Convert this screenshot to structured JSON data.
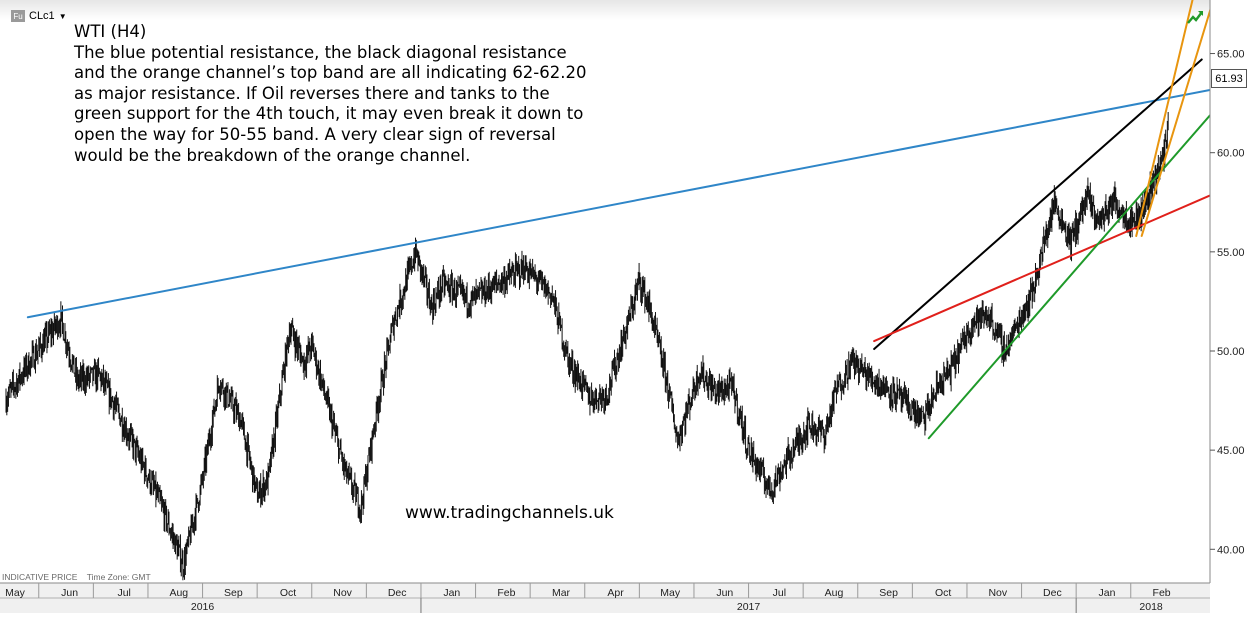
{
  "symbol": {
    "badge": "Fu",
    "name": "CLc1",
    "caret": "▼"
  },
  "annotation": {
    "title": "WTI (H4)",
    "lines": [
      "The blue potential resistance, the black diagonal resistance",
      "and the orange channel’s top band are all indicating 62-62.20",
      "as major resistance. If Oil reverses there and tanks to the",
      "green support for the 4th touch, it may even break it down to",
      "open the way for 50-55 band. A very clear sign of reversal",
      "would be the breakdown of the orange channel."
    ]
  },
  "watermark": "www.tradingchannels.uk",
  "footer": {
    "left": "INDICATIVE PRICE",
    "right": "Time Zone: GMT"
  },
  "last_price": "61.93",
  "icons": {
    "corner": "trend-up-icon"
  },
  "colors": {
    "blue_resistance": "#2f86c8",
    "black_resistance": "#000000",
    "red_support": "#e0201b",
    "green_support": "#1f9a2a",
    "orange_channel": "#e8950f"
  },
  "chart_data": {
    "type": "candlestick",
    "title": "",
    "timeframe": "H4",
    "y_ticks": [
      "40.00",
      "45.00",
      "50.00",
      "55.00",
      "60.00",
      "65.00"
    ],
    "ylim": [
      38.3,
      67.7
    ],
    "x_month_labels": [
      "May",
      "Jun",
      "Jul",
      "Aug",
      "Sep",
      "Oct",
      "Nov",
      "Dec",
      "Jan",
      "Feb",
      "Mar",
      "Apr",
      "May",
      "Jun",
      "Jul",
      "Aug",
      "Sep",
      "Oct",
      "Nov",
      "Dec",
      "Jan",
      "Feb"
    ],
    "x_year_labels": [
      "2016",
      "2017",
      "2018"
    ],
    "price_path": [
      [
        0,
        47.6
      ],
      [
        0.5,
        49.7
      ],
      [
        1,
        51.6
      ],
      [
        1.3,
        48.5
      ],
      [
        1.7,
        48.8
      ],
      [
        2,
        47.2
      ],
      [
        2.8,
        42.5
      ],
      [
        3.25,
        39.2
      ],
      [
        3.6,
        43.5
      ],
      [
        3.9,
        48.5
      ],
      [
        4.3,
        46.5
      ],
      [
        4.6,
        42.7
      ],
      [
        4.8,
        43.5
      ],
      [
        5.2,
        51.2
      ],
      [
        5.45,
        49.4
      ],
      [
        5.6,
        50.3
      ],
      [
        6.2,
        44.0
      ],
      [
        6.5,
        42.1
      ],
      [
        6.8,
        47.2
      ],
      [
        7.1,
        51.5
      ],
      [
        7.5,
        55.0
      ],
      [
        7.8,
        52.2
      ],
      [
        8,
        53.4
      ],
      [
        8.5,
        52.5
      ],
      [
        9,
        53.4
      ],
      [
        9.5,
        54.2
      ],
      [
        10,
        52.8
      ],
      [
        10.3,
        49.5
      ],
      [
        10.7,
        47.6
      ],
      [
        11,
        47.8
      ],
      [
        11.4,
        51.5
      ],
      [
        11.6,
        53.6
      ],
      [
        11.8,
        52.0
      ],
      [
        12.1,
        48.5
      ],
      [
        12.3,
        45.5
      ],
      [
        12.7,
        49.0
      ],
      [
        13,
        47.9
      ],
      [
        13.3,
        48.2
      ],
      [
        13.6,
        45.0
      ],
      [
        14,
        43.0
      ],
      [
        14.3,
        44.5
      ],
      [
        14.7,
        46.3
      ],
      [
        15,
        45.8
      ],
      [
        15.2,
        48.0
      ],
      [
        15.5,
        49.5
      ],
      [
        15.8,
        48.7
      ],
      [
        16.3,
        47.8
      ],
      [
        16.8,
        46.5
      ],
      [
        17.1,
        48.4
      ],
      [
        17.3,
        49.0
      ],
      [
        17.7,
        51.5
      ],
      [
        18,
        51.8
      ],
      [
        18.3,
        50.0
      ],
      [
        18.6,
        51.8
      ],
      [
        18.8,
        53.0
      ],
      [
        19,
        55.3
      ],
      [
        19.2,
        57.5
      ],
      [
        19.5,
        55.5
      ],
      [
        19.8,
        57.8
      ],
      [
        20,
        56.5
      ],
      [
        20.3,
        57.6
      ],
      [
        20.6,
        56.5
      ],
      [
        20.8,
        57.0
      ],
      [
        21,
        58.5
      ],
      [
        21.2,
        59.8
      ],
      [
        21.3,
        61.9
      ]
    ],
    "trendlines": [
      {
        "name": "blue potential resistance",
        "color": "blue",
        "from": [
          0.4,
          51.7
        ],
        "to": [
          22.5,
          63.4
        ]
      },
      {
        "name": "black diagonal resistance",
        "color": "black",
        "from": [
          15.9,
          50.1
        ],
        "to": [
          21.9,
          64.7
        ]
      },
      {
        "name": "red support",
        "color": "red",
        "from": [
          15.9,
          50.5
        ],
        "to": [
          22.1,
          57.9
        ]
      },
      {
        "name": "green support",
        "color": "green",
        "from": [
          16.9,
          45.6
        ],
        "to": [
          23.1,
          65.2
        ]
      },
      {
        "name": "orange channel top",
        "color": "orange",
        "from": [
          20.7,
          55.8
        ],
        "to": [
          21.8,
          68.5
        ]
      },
      {
        "name": "orange channel bottom",
        "color": "orange",
        "from": [
          20.8,
          55.8
        ],
        "to": [
          22.2,
          68.5
        ]
      }
    ]
  }
}
